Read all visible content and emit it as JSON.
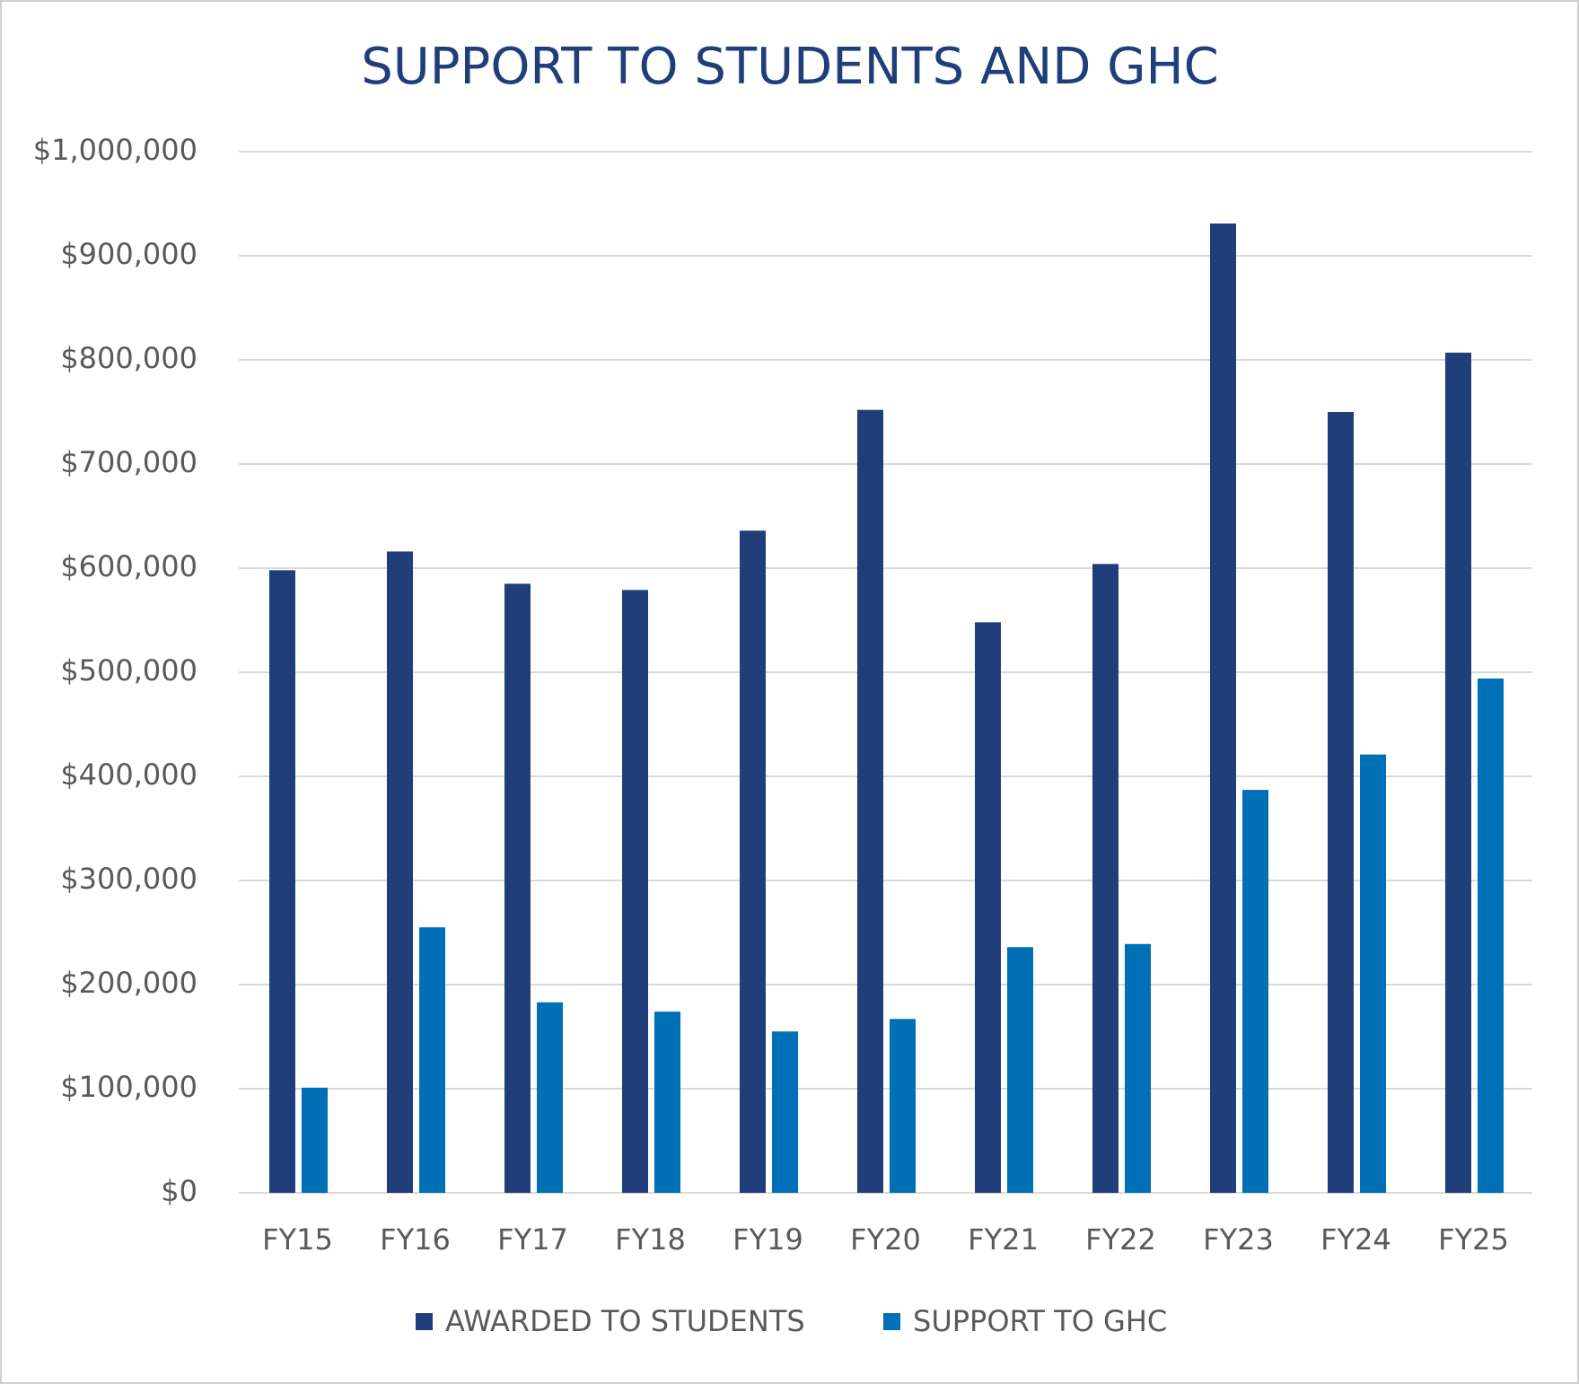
{
  "chart_data": {
    "type": "bar",
    "title": "SUPPORT TO STUDENTS AND GHC",
    "categories": [
      "FY15",
      "FY16",
      "FY17",
      "FY18",
      "FY19",
      "FY20",
      "FY21",
      "FY22",
      "FY23",
      "FY24",
      "FY25"
    ],
    "series": [
      {
        "name": "AWARDED TO STUDENTS",
        "color": "#203e7a",
        "values": [
          598000,
          616000,
          585000,
          579000,
          636000,
          752000,
          548000,
          604000,
          931000,
          750000,
          807000
        ]
      },
      {
        "name": "SUPPORT TO GHC",
        "color": "#0070b6",
        "values": [
          101000,
          255000,
          183000,
          174000,
          155000,
          167000,
          236000,
          239000,
          387000,
          421000,
          494000
        ]
      }
    ],
    "ylim": [
      0,
      1000000
    ],
    "yticks": [
      {
        "value": 0,
        "label": "$0"
      },
      {
        "value": 100000,
        "label": "$100,000"
      },
      {
        "value": 200000,
        "label": "$200,000"
      },
      {
        "value": 300000,
        "label": "$300,000"
      },
      {
        "value": 400000,
        "label": "$400,000"
      },
      {
        "value": 500000,
        "label": "$500,000"
      },
      {
        "value": 600000,
        "label": "$600,000"
      },
      {
        "value": 700000,
        "label": "$700,000"
      },
      {
        "value": 800000,
        "label": "$800,000"
      },
      {
        "value": 900000,
        "label": "$900,000"
      },
      {
        "value": 1000000,
        "label": "$1,000,000"
      }
    ],
    "grid": true,
    "legend": "bottom"
  }
}
